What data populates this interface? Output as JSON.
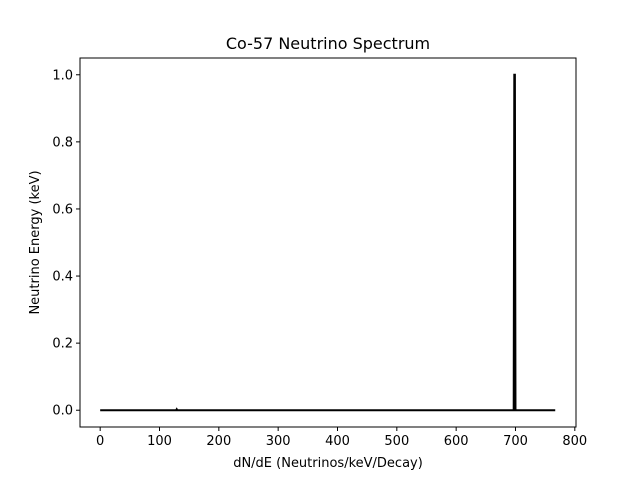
{
  "chart_data": {
    "type": "line",
    "title": "Co-57 Neutrino Spectrum",
    "xlabel": "dN/dE (Neutrinos/keV/Decay)",
    "ylabel": "Neutrino Energy (keV)",
    "xlim": [
      -34,
      802
    ],
    "ylim": [
      -0.05,
      1.05
    ],
    "xticks": [
      0,
      100,
      200,
      300,
      400,
      500,
      600,
      700,
      800
    ],
    "xtick_labels": [
      "0",
      "100",
      "200",
      "300",
      "400",
      "500",
      "600",
      "700",
      "800"
    ],
    "yticks": [
      0.0,
      0.2,
      0.4,
      0.6,
      0.8,
      1.0
    ],
    "ytick_labels": [
      "0.0",
      "0.2",
      "0.4",
      "0.6",
      "0.8",
      "1.0"
    ],
    "grid": false,
    "series": [
      {
        "color": "#000000",
        "x": [
          0,
          128,
          129,
          130,
          131,
          697,
          698,
          699,
          700,
          701,
          767
        ],
        "y": [
          0,
          0,
          0.003,
          0,
          0,
          0,
          1.0,
          1.0,
          0,
          0,
          0
        ]
      }
    ]
  }
}
